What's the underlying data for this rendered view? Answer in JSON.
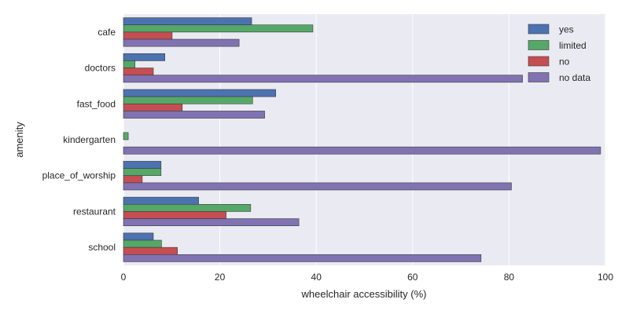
{
  "chart_data": {
    "type": "bar",
    "orientation": "horizontal",
    "title": "",
    "xlabel": "wheelchair accessibility (%)",
    "ylabel": "amenity",
    "xlim": [
      0,
      100
    ],
    "xticks": [
      0,
      20,
      40,
      60,
      80,
      100
    ],
    "grid": true,
    "legend_position": "top-right",
    "categories": [
      "cafe",
      "doctors",
      "fast_food",
      "kindergarten",
      "place_of_worship",
      "restaurant",
      "school"
    ],
    "series": [
      {
        "name": "yes",
        "color": "#4c72b0",
        "values": [
          26.6,
          8.6,
          31.6,
          0.0,
          7.8,
          15.6,
          6.2
        ]
      },
      {
        "name": "limited",
        "color": "#55a868",
        "values": [
          39.3,
          2.4,
          26.8,
          1.0,
          7.8,
          26.4,
          7.9
        ]
      },
      {
        "name": "no",
        "color": "#c44e52",
        "values": [
          10.1,
          6.2,
          12.2,
          0.0,
          3.9,
          21.3,
          11.2
        ]
      },
      {
        "name": "no data",
        "color": "#8172b2",
        "values": [
          24.0,
          82.8,
          29.3,
          99.0,
          80.5,
          36.4,
          74.2
        ]
      }
    ]
  }
}
